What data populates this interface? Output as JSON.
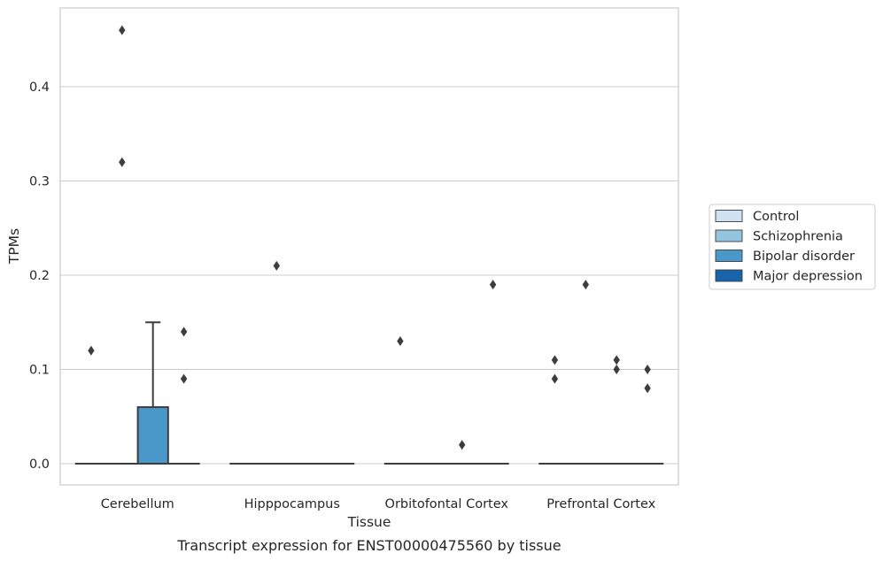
{
  "chart_data": {
    "type": "box",
    "xlabel": "Tissue",
    "ylabel": "TPMs",
    "caption": "Transcript expression for ENST00000475560 by tissue",
    "categories": [
      "Cerebellum",
      "Hipppocampus",
      "Orbitofontal Cortex",
      "Prefrontal Cortex"
    ],
    "yticks": [
      0.0,
      0.1,
      0.2,
      0.3,
      0.4
    ],
    "ytick_labels": [
      "0.0",
      "0.1",
      "0.2",
      "0.3",
      "0.4"
    ],
    "ylim": [
      -0.022,
      0.483
    ],
    "grid": true,
    "legend_position": "right",
    "series": [
      {
        "name": "Control",
        "color": "#d0e1f2",
        "boxes": [
          {
            "q1": 0,
            "median": 0,
            "q3": 0,
            "whisker_low": 0,
            "whisker_high": 0,
            "outliers": [
              0.12
            ]
          },
          {
            "q1": 0,
            "median": 0,
            "q3": 0,
            "whisker_low": 0,
            "whisker_high": 0,
            "outliers": []
          },
          {
            "q1": 0,
            "median": 0,
            "q3": 0,
            "whisker_low": 0,
            "whisker_high": 0,
            "outliers": [
              0.13
            ]
          },
          {
            "q1": 0,
            "median": 0,
            "q3": 0,
            "whisker_low": 0,
            "whisker_high": 0,
            "outliers": [
              0.11,
              0.09
            ]
          }
        ]
      },
      {
        "name": "Schizophrenia",
        "color": "#94c4df",
        "boxes": [
          {
            "q1": 0,
            "median": 0,
            "q3": 0,
            "whisker_low": 0,
            "whisker_high": 0,
            "outliers": [
              0.46,
              0.32
            ]
          },
          {
            "q1": 0,
            "median": 0,
            "q3": 0,
            "whisker_low": 0,
            "whisker_high": 0,
            "outliers": [
              0.21
            ]
          },
          {
            "q1": 0,
            "median": 0,
            "q3": 0,
            "whisker_low": 0,
            "whisker_high": 0,
            "outliers": []
          },
          {
            "q1": 0,
            "median": 0,
            "q3": 0,
            "whisker_low": 0,
            "whisker_high": 0,
            "outliers": [
              0.19
            ]
          }
        ]
      },
      {
        "name": "Bipolar disorder",
        "color": "#4a98c9",
        "boxes": [
          {
            "q1": 0,
            "median": 0,
            "q3": 0.06,
            "whisker_low": 0,
            "whisker_high": 0.15,
            "outliers": []
          },
          {
            "q1": 0,
            "median": 0,
            "q3": 0,
            "whisker_low": 0,
            "whisker_high": 0,
            "outliers": []
          },
          {
            "q1": 0,
            "median": 0,
            "q3": 0,
            "whisker_low": 0,
            "whisker_high": 0,
            "outliers": [
              0.02
            ]
          },
          {
            "q1": 0,
            "median": 0,
            "q3": 0,
            "whisker_low": 0,
            "whisker_high": 0,
            "outliers": [
              0.11,
              0.1
            ]
          }
        ]
      },
      {
        "name": "Major depression",
        "color": "#1764ab",
        "boxes": [
          {
            "q1": 0,
            "median": 0,
            "q3": 0,
            "whisker_low": 0,
            "whisker_high": 0,
            "outliers": [
              0.14,
              0.09
            ]
          },
          {
            "q1": 0,
            "median": 0,
            "q3": 0,
            "whisker_low": 0,
            "whisker_high": 0,
            "outliers": []
          },
          {
            "q1": 0,
            "median": 0,
            "q3": 0,
            "whisker_low": 0,
            "whisker_high": 0,
            "outliers": [
              0.19
            ]
          },
          {
            "q1": 0,
            "median": 0,
            "q3": 0,
            "whisker_low": 0,
            "whisker_high": 0,
            "outliers": [
              0.1,
              0.08
            ]
          }
        ]
      }
    ]
  }
}
